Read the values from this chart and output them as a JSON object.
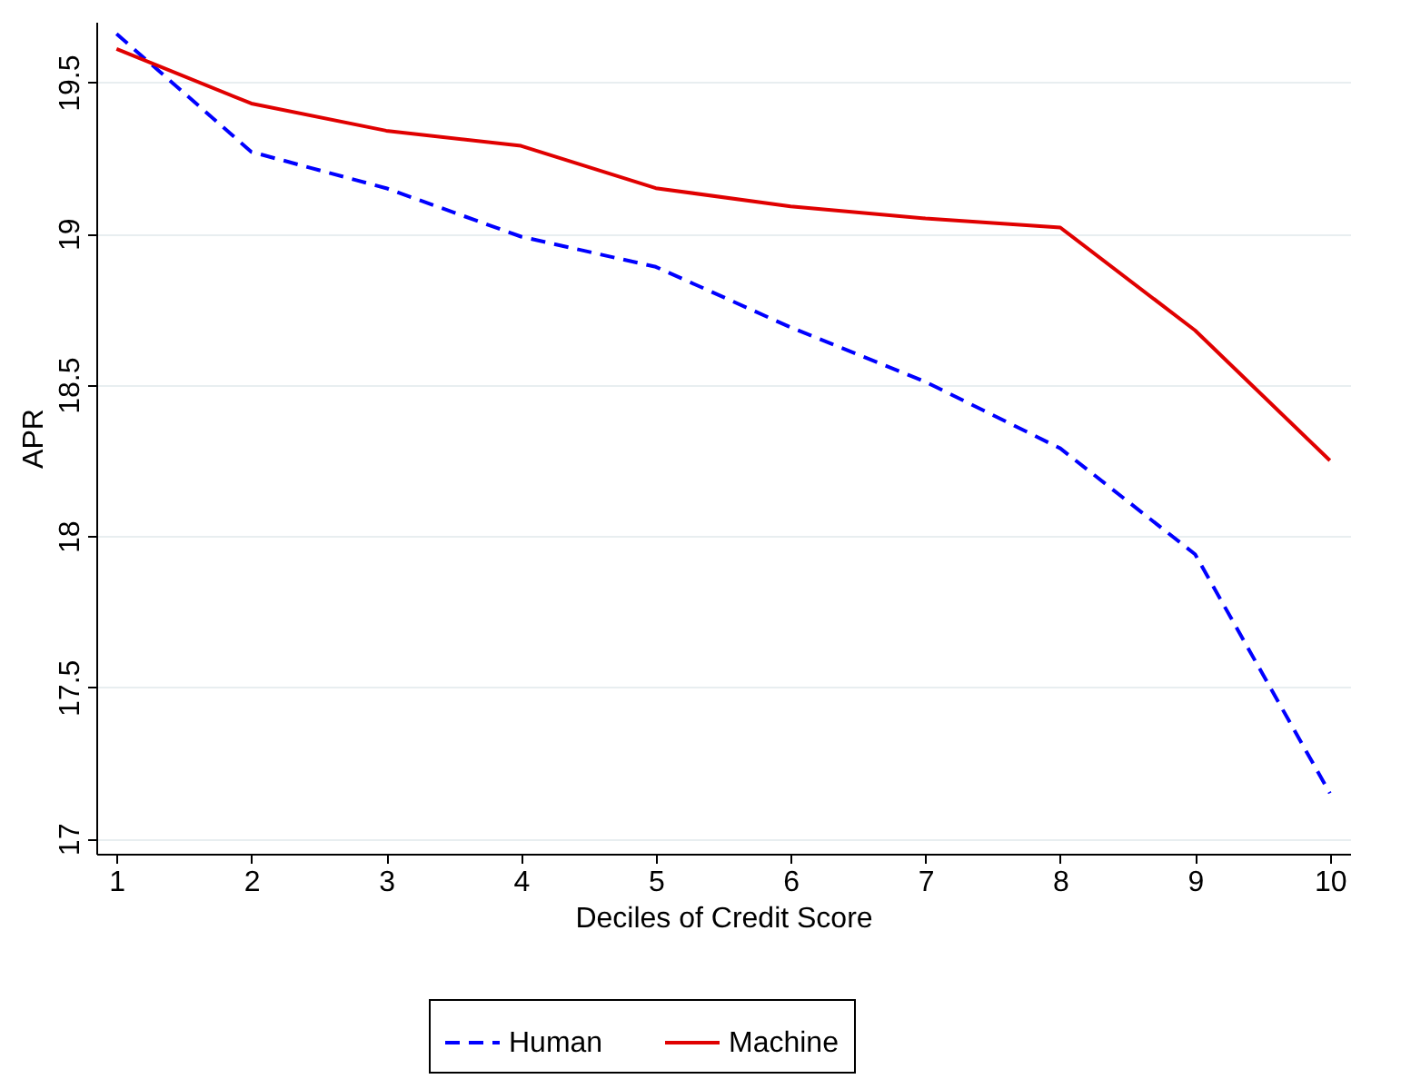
{
  "chart_data": {
    "type": "line",
    "xlabel": "Deciles of Credit Score",
    "ylabel": "APR",
    "x": [
      1,
      2,
      3,
      4,
      5,
      6,
      7,
      8,
      9,
      10
    ],
    "series": [
      {
        "name": "Human",
        "color": "#0000ff",
        "line_style": "dashed",
        "values": [
          19.66,
          19.27,
          19.15,
          18.99,
          18.89,
          18.69,
          18.51,
          18.29,
          17.94,
          17.15
        ]
      },
      {
        "name": "Machine",
        "color": "#e00000",
        "line_style": "solid",
        "values": [
          19.61,
          19.43,
          19.34,
          19.29,
          19.15,
          19.09,
          19.05,
          19.02,
          18.68,
          18.25
        ]
      }
    ],
    "xlim": [
      0.85,
      10.15
    ],
    "xticks": [
      1,
      2,
      3,
      4,
      5,
      6,
      7,
      8,
      9,
      10
    ],
    "ylim": [
      16.95,
      19.7
    ],
    "yticks": [
      17,
      17.5,
      18,
      18.5,
      19,
      19.5
    ],
    "grid": "y",
    "legend": "bottom",
    "marker": "none"
  }
}
